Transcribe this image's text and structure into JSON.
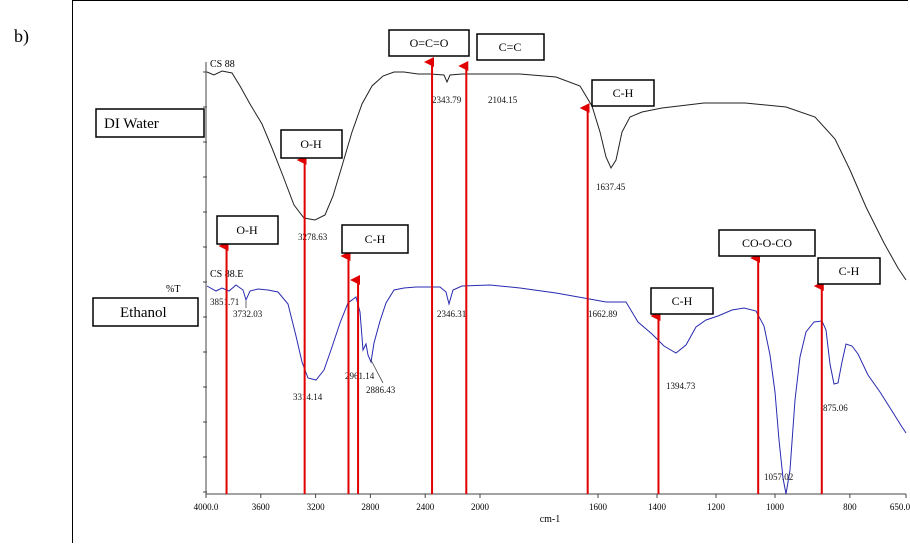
{
  "figure_label": "b)",
  "colors": {
    "water_trace": "#222222",
    "ethanol_trace": "#2a2ab0",
    "arrow": "#e00000",
    "box_border": "#000000"
  },
  "chart_data": {
    "type": "line",
    "title": "",
    "xlabel": "cm-1",
    "ylabel": "%T",
    "x_reversed": true,
    "xlim": [
      4000,
      650
    ],
    "x_ticks": [
      "4000.0",
      "3600",
      "3200",
      "2800",
      "2400",
      "2000",
      "1600",
      "1400",
      "1200",
      "1000",
      "800",
      "650.0"
    ],
    "y_ticks_labeled": false,
    "series": [
      {
        "name": "CS 88",
        "sample_label": "DI Water",
        "peak_labels": [
          "3278.63",
          "2343.79",
          "2104.15",
          "1637.45"
        ]
      },
      {
        "name": "CS 88.E",
        "sample_label": "Ethanol",
        "peak_labels": [
          "3851.71",
          "3732.03",
          "3314.14",
          "2961.14",
          "2886.43",
          "2346.31",
          "1662.89",
          "1394.73",
          "1057.02",
          "875.06"
        ]
      }
    ],
    "annotations": [
      {
        "label": "O=C=O",
        "x": 2350
      },
      {
        "label": "C=C",
        "x": 2100
      },
      {
        "label": "C-H",
        "x": 1635
      },
      {
        "label": "O-H",
        "x": 3280
      },
      {
        "label": "O-H",
        "x": 3850
      },
      {
        "label": "C-H",
        "x": 2960
      },
      {
        "label": "C-H",
        "x": 2890
      },
      {
        "label": "C-H",
        "x": 1395
      },
      {
        "label": "CO-O-CO",
        "x": 1057
      },
      {
        "label": "C-H",
        "x": 875
      }
    ]
  }
}
